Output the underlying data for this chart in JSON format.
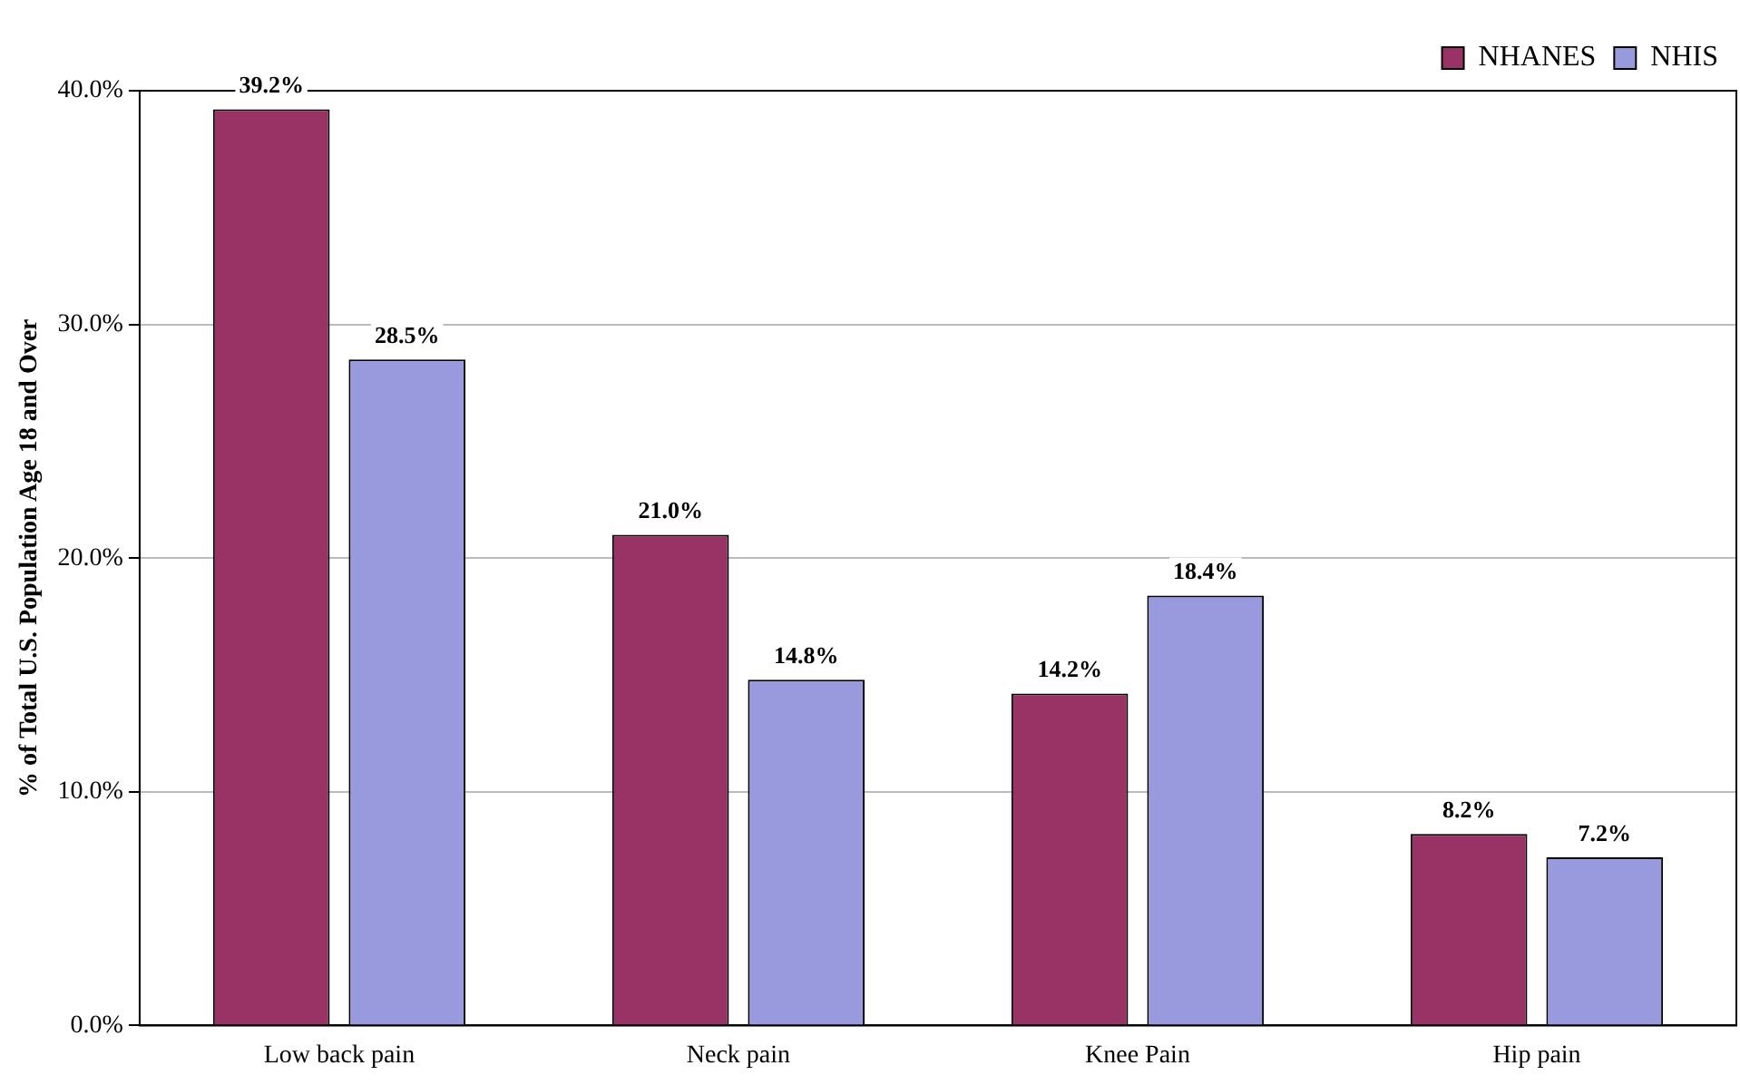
{
  "chart_data": {
    "type": "bar",
    "ylabel": "% of Total U.S. Population Age 18 and Over",
    "categories": [
      "Low back pain",
      "Neck pain",
      "Knee Pain",
      "Hip pain"
    ],
    "series": [
      {
        "name": "NHANES",
        "color": "#993366",
        "values": [
          39.2,
          21.0,
          14.2,
          8.2
        ],
        "value_labels": [
          "39.2%",
          "21.0%",
          "14.2%",
          "8.2%"
        ]
      },
      {
        "name": "NHIS",
        "color": "#9999dd",
        "values": [
          28.5,
          14.8,
          18.4,
          7.2
        ],
        "value_labels": [
          "28.5%",
          "14.8%",
          "18.4%",
          "7.2%"
        ]
      }
    ],
    "ylim": [
      0,
      40
    ],
    "yticks": [
      {
        "value": 0,
        "label": "0.0%"
      },
      {
        "value": 10,
        "label": "10.0%"
      },
      {
        "value": 20,
        "label": "20.0%"
      },
      {
        "value": 30,
        "label": "30.0%"
      },
      {
        "value": 40,
        "label": "40.0%"
      }
    ],
    "grid": "y",
    "legend": "top right"
  }
}
